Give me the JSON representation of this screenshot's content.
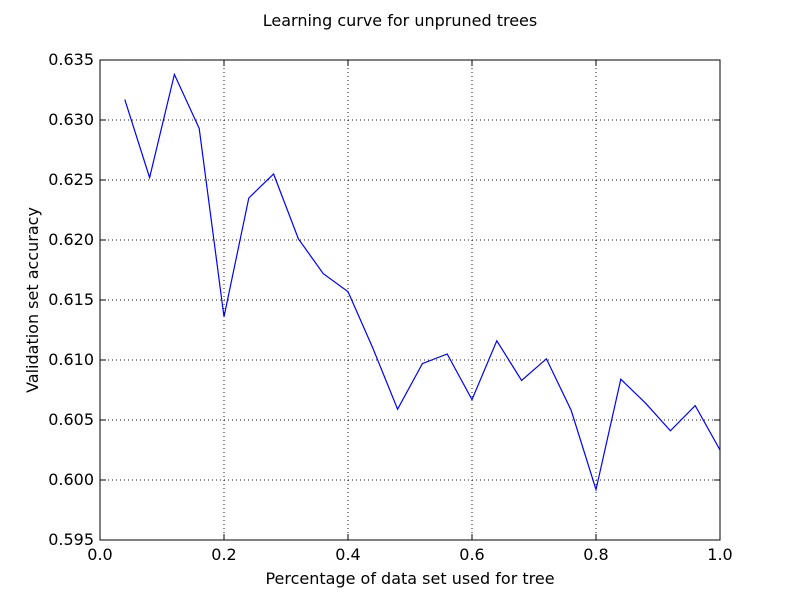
{
  "chart_data": {
    "type": "line",
    "title": "Learning curve for unpruned trees",
    "xlabel": "Percentage of data set used for tree",
    "ylabel": "Validation set accuracy",
    "xlim": [
      0.0,
      1.0
    ],
    "ylim": [
      0.595,
      0.635
    ],
    "xticks": [
      "0.0",
      "0.2",
      "0.4",
      "0.6",
      "0.8",
      "1.0"
    ],
    "yticks": [
      "0.595",
      "0.600",
      "0.605",
      "0.610",
      "0.615",
      "0.620",
      "0.625",
      "0.630",
      "0.635"
    ],
    "grid": true,
    "x": [
      0.04,
      0.08,
      0.12,
      0.16,
      0.2,
      0.24,
      0.28,
      0.32,
      0.36,
      0.4,
      0.44,
      0.48,
      0.52,
      0.56,
      0.6,
      0.64,
      0.68,
      0.72,
      0.76,
      0.8,
      0.84,
      0.88,
      0.92,
      0.96,
      1.0
    ],
    "series": [
      {
        "color": "#0000ff",
        "values": [
          0.6317,
          0.6252,
          0.6338,
          0.6293,
          0.6136,
          0.6235,
          0.6255,
          0.6201,
          0.6172,
          0.6157,
          0.611,
          0.6059,
          0.6097,
          0.6105,
          0.6067,
          0.6116,
          0.6083,
          0.6101,
          0.6058,
          0.5992,
          0.6084,
          0.6064,
          0.6041,
          0.6062,
          0.6025
        ]
      }
    ]
  }
}
